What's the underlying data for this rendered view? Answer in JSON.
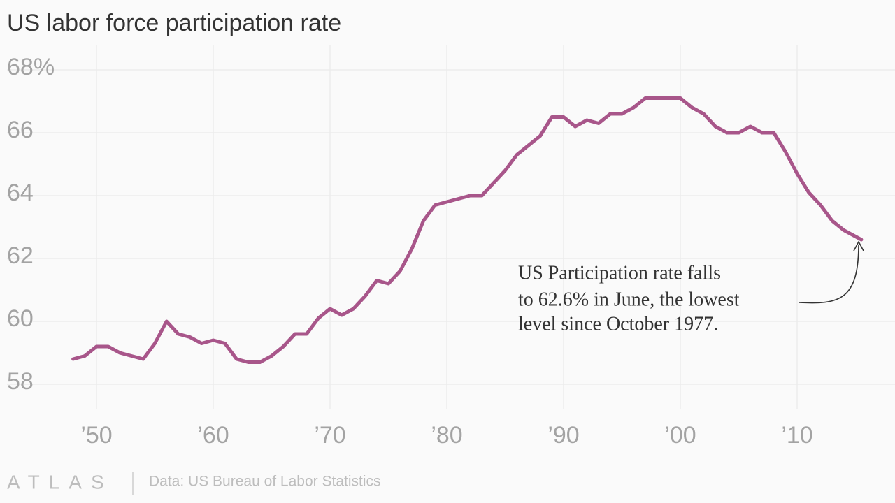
{
  "chart_data": {
    "type": "line",
    "title": "US labor force participation rate",
    "color": "#a8568a",
    "x": [
      1948,
      1949,
      1950,
      1951,
      1952,
      1953,
      1954,
      1955,
      1956,
      1957,
      1958,
      1959,
      1960,
      1961,
      1962,
      1963,
      1964,
      1965,
      1966,
      1967,
      1968,
      1969,
      1970,
      1971,
      1972,
      1973,
      1974,
      1975,
      1976,
      1977,
      1978,
      1979,
      1980,
      1981,
      1982,
      1983,
      1984,
      1985,
      1986,
      1987,
      1988,
      1989,
      1990,
      1991,
      1992,
      1993,
      1994,
      1995,
      1996,
      1997,
      1998,
      1999,
      2000,
      2001,
      2002,
      2003,
      2004,
      2005,
      2006,
      2007,
      2008,
      2009,
      2010,
      2011,
      2012,
      2013,
      2014,
      2015,
      2015.5
    ],
    "values": [
      58.8,
      58.9,
      59.2,
      59.2,
      59.0,
      58.9,
      58.8,
      59.3,
      60.0,
      59.6,
      59.5,
      59.3,
      59.4,
      59.3,
      58.8,
      58.7,
      58.7,
      58.9,
      59.2,
      59.6,
      59.6,
      60.1,
      60.4,
      60.2,
      60.4,
      60.8,
      61.3,
      61.2,
      61.6,
      62.3,
      63.2,
      63.7,
      63.8,
      63.9,
      64.0,
      64.0,
      64.4,
      64.8,
      65.3,
      65.6,
      65.9,
      66.5,
      66.5,
      66.2,
      66.4,
      66.3,
      66.6,
      66.6,
      66.8,
      67.1,
      67.1,
      67.1,
      67.1,
      66.8,
      66.6,
      66.2,
      66.0,
      66.0,
      66.2,
      66.0,
      66.0,
      65.4,
      64.7,
      64.1,
      63.7,
      63.2,
      62.9,
      62.7,
      62.6
    ],
    "xlim": [
      1946,
      2017
    ],
    "ylim": [
      57.2,
      68.4
    ],
    "xticks": [
      {
        "value": 1950,
        "label": "’50"
      },
      {
        "value": 1960,
        "label": "’60"
      },
      {
        "value": 1970,
        "label": "’70"
      },
      {
        "value": 1980,
        "label": "’80"
      },
      {
        "value": 1990,
        "label": "’90"
      },
      {
        "value": 2000,
        "label": "’00"
      },
      {
        "value": 2010,
        "label": "’10"
      }
    ],
    "yticks": [
      58,
      60,
      62,
      64,
      66,
      {
        "value": 68,
        "label": "68%"
      }
    ],
    "grid": true,
    "annotation": [
      "US Participation rate falls",
      "to 62.6% in June, the lowest",
      "level since October 1977."
    ],
    "logo": "ATLAS",
    "source": "Data: US Bureau of Labor Statistics"
  }
}
